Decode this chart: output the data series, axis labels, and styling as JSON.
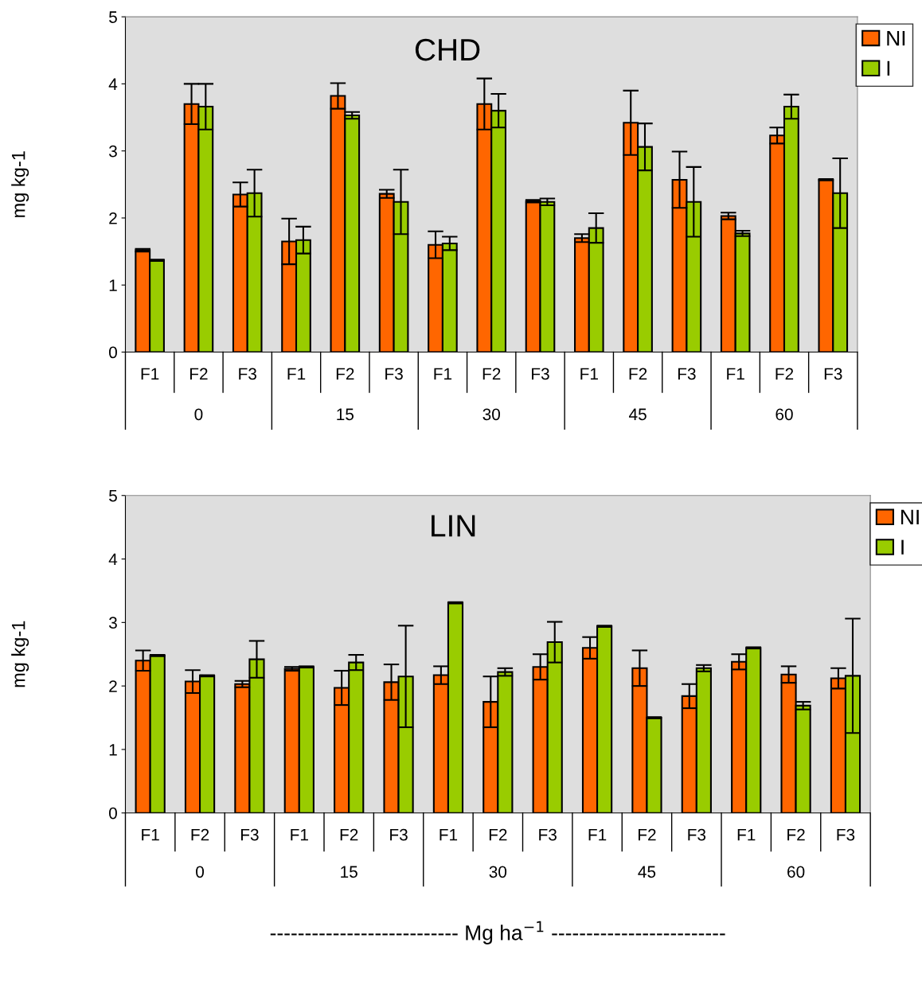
{
  "chart_data": [
    {
      "type": "bar",
      "title": "CHD",
      "ylabel": "mg kg-1",
      "categories": [
        "F1",
        "F2",
        "F3",
        "F1",
        "F2",
        "F3",
        "F1",
        "F2",
        "F3",
        "F1",
        "F2",
        "F3",
        "F1",
        "F2",
        "F3"
      ],
      "series": [
        {
          "name": "NI",
          "color": "#ff6600",
          "values": [
            1.52,
            3.7,
            2.35,
            1.65,
            3.82,
            2.36,
            1.6,
            3.7,
            2.25,
            1.7,
            3.42,
            2.57,
            2.03,
            3.23,
            2.57
          ],
          "errors": [
            0.02,
            0.3,
            0.18,
            0.34,
            0.19,
            0.06,
            0.2,
            0.38,
            0.02,
            0.06,
            0.48,
            0.42,
            0.05,
            0.12,
            0.01
          ]
        },
        {
          "name": "I",
          "color": "#99cc00",
          "values": [
            1.37,
            3.66,
            2.37,
            1.67,
            3.53,
            2.24,
            1.62,
            3.6,
            2.24,
            1.85,
            3.06,
            2.24,
            1.77,
            3.66,
            2.37
          ],
          "errors": [
            0.01,
            0.34,
            0.35,
            0.2,
            0.05,
            0.48,
            0.1,
            0.25,
            0.05,
            0.22,
            0.35,
            0.52,
            0.04,
            0.18,
            0.52
          ]
        }
      ],
      "annotations": [
        "0",
        "15",
        "30",
        "45",
        "60"
      ],
      "ylim": [
        0,
        5
      ],
      "yticks": [
        0,
        1,
        2,
        3,
        4,
        5
      ],
      "grid": false,
      "legend": "top right"
    },
    {
      "type": "bar",
      "title": "LIN",
      "ylabel": "mg kg-1",
      "xlabel": "--------------------------- Mg ha$^{−1}$ -------------------------",
      "categories": [
        "F1",
        "F2",
        "F3",
        "F1",
        "F2",
        "F3",
        "F1",
        "F2",
        "F3",
        "F1",
        "F2",
        "F3",
        "F1",
        "F2",
        "F3"
      ],
      "series": [
        {
          "name": "NI",
          "color": "#ff6600",
          "values": [
            2.4,
            2.07,
            2.03,
            2.27,
            1.97,
            2.06,
            2.17,
            1.75,
            2.3,
            2.6,
            2.28,
            1.84,
            2.38,
            2.18,
            2.12
          ],
          "errors": [
            0.16,
            0.18,
            0.05,
            0.03,
            0.27,
            0.28,
            0.14,
            0.4,
            0.2,
            0.17,
            0.28,
            0.19,
            0.12,
            0.13,
            0.16
          ]
        },
        {
          "name": "I",
          "color": "#99cc00",
          "values": [
            2.48,
            2.16,
            2.42,
            2.3,
            2.37,
            2.15,
            3.31,
            2.22,
            2.69,
            2.94,
            1.5,
            2.28,
            2.6,
            1.69,
            2.16
          ],
          "errors": [
            0.01,
            0.01,
            0.29,
            0.01,
            0.12,
            0.8,
            0.01,
            0.06,
            0.32,
            0.01,
            0.01,
            0.05,
            0.01,
            0.06,
            0.9
          ]
        }
      ],
      "annotations": [
        "0",
        "15",
        "30",
        "45",
        "60"
      ],
      "ylim": [
        0,
        5
      ],
      "yticks": [
        0,
        1,
        2,
        3,
        4,
        5
      ],
      "grid": false,
      "legend": "top right"
    }
  ]
}
